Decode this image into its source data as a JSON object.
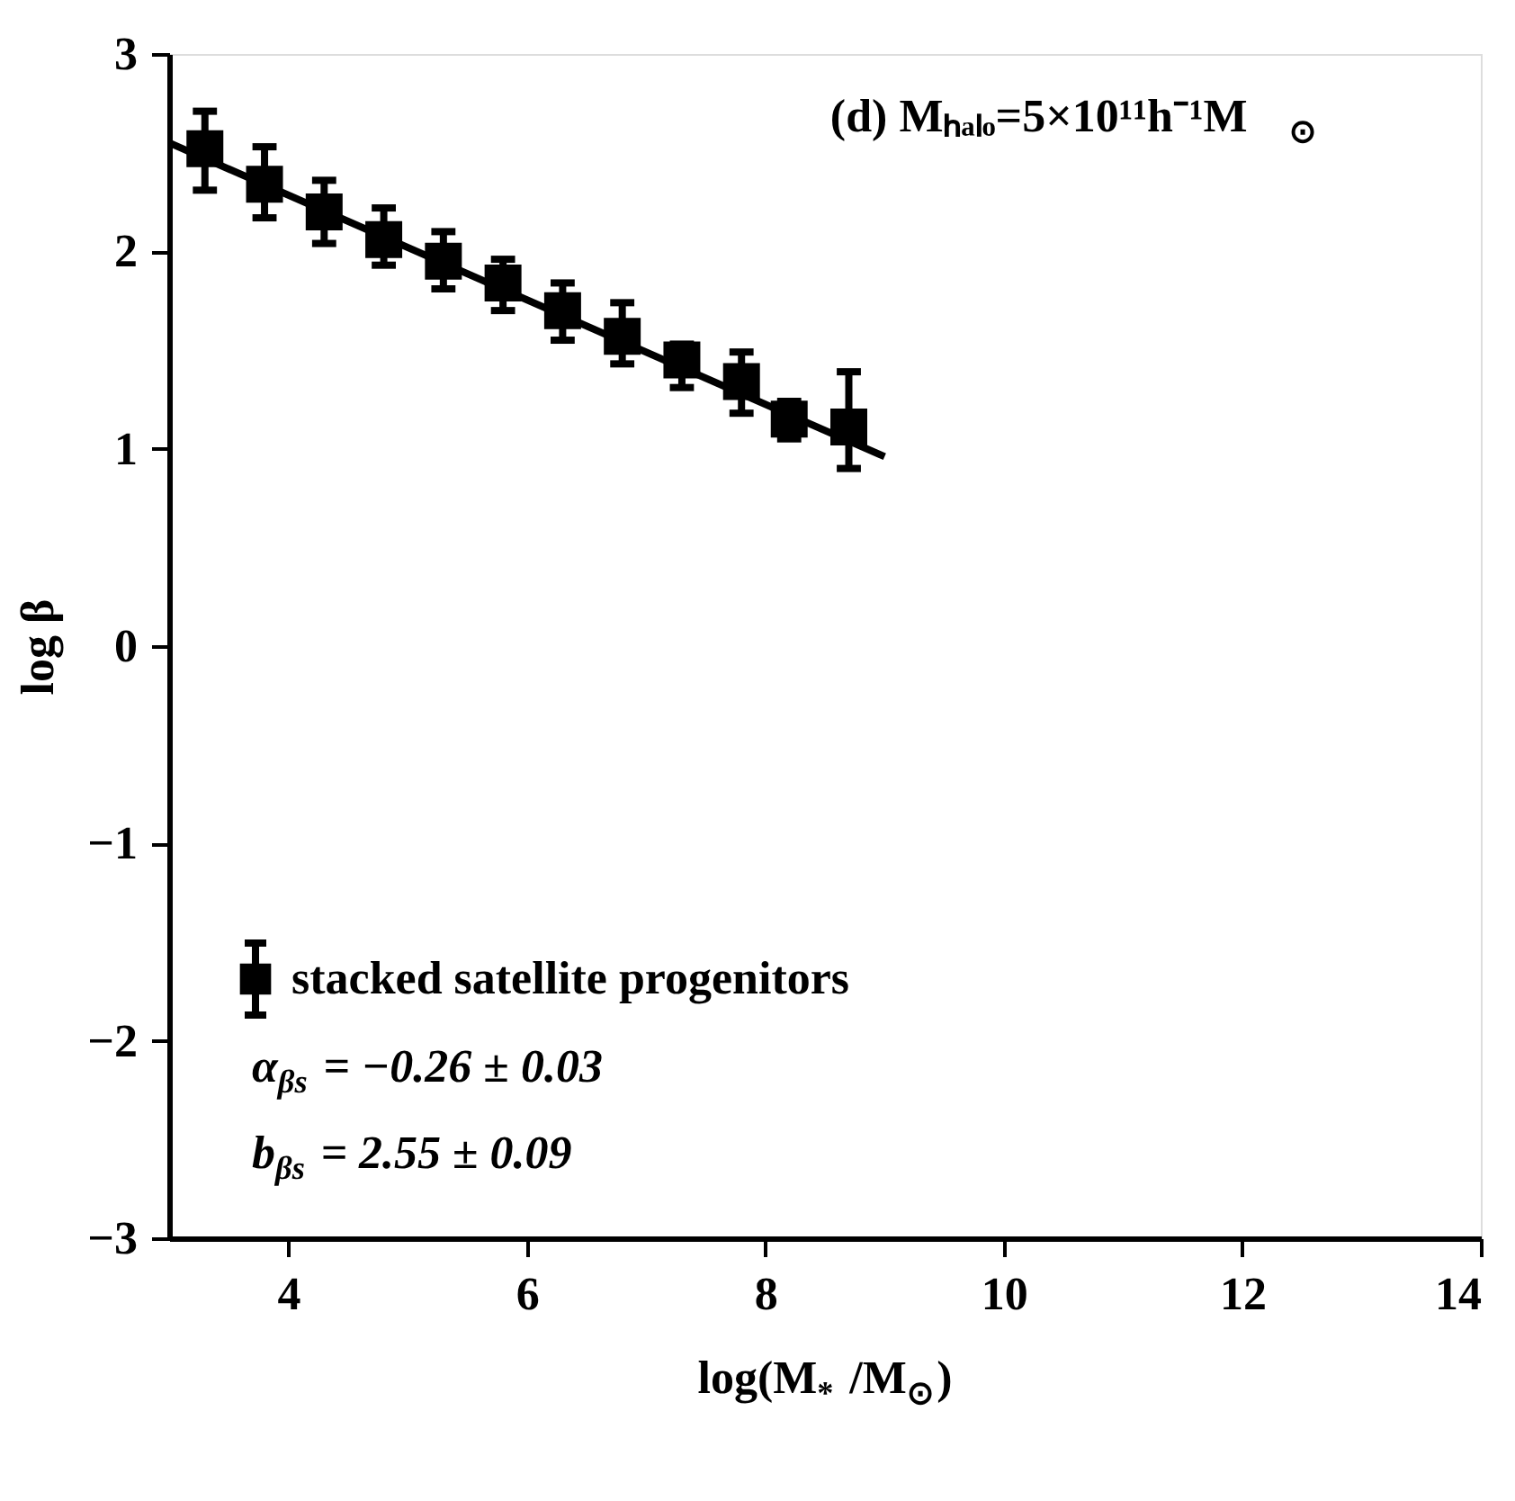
{
  "chart_data": {
    "type": "scatter",
    "xlabel": "log(M$_{*}$/M$_{⊙}$)",
    "ylabel": "log β",
    "xlim": [
      3,
      14
    ],
    "xticks": [
      4,
      6,
      8,
      10,
      12,
      14
    ],
    "ylim": [
      -3,
      3
    ],
    "yticks": [
      -3,
      -2,
      -1,
      0,
      1,
      2,
      3
    ],
    "grid": false,
    "legend": "bottom left",
    "annotations": [
      "(d)  Mₕₐₗₒ=5×10¹¹h⁻¹M$_{⊙}$",
      "α$_{βs}$ = −0.26 ± 0.03",
      "b$_{βs}$ = 2.55 ± 0.09"
    ],
    "series": [
      {
        "name": "stacked satellite progenitors",
        "type": "scatter",
        "marker": "square",
        "color": "#000000",
        "x": [
          3.3,
          3.8,
          4.3,
          4.8,
          5.3,
          5.8,
          6.3,
          6.8,
          7.3,
          7.8,
          8.2,
          8.7
        ],
        "values": [
          2.52,
          2.34,
          2.2,
          2.06,
          1.95,
          1.84,
          1.7,
          1.57,
          1.45,
          1.34,
          1.15,
          1.11
        ],
        "errors": [
          [
            2.31,
            2.71
          ],
          [
            2.17,
            2.53
          ],
          [
            2.04,
            2.36
          ],
          [
            1.93,
            2.22
          ],
          [
            1.81,
            2.1
          ],
          [
            1.7,
            1.96
          ],
          [
            1.55,
            1.84
          ],
          [
            1.43,
            1.74
          ],
          [
            1.31,
            1.53
          ],
          [
            1.18,
            1.49
          ],
          [
            1.05,
            1.24
          ],
          [
            0.9,
            1.39
          ]
        ]
      },
      {
        "type": "line",
        "line_style": "solid",
        "color": "#000000",
        "x": [
          3,
          9
        ],
        "values": [
          2.55,
          0.96
        ]
      }
    ]
  }
}
